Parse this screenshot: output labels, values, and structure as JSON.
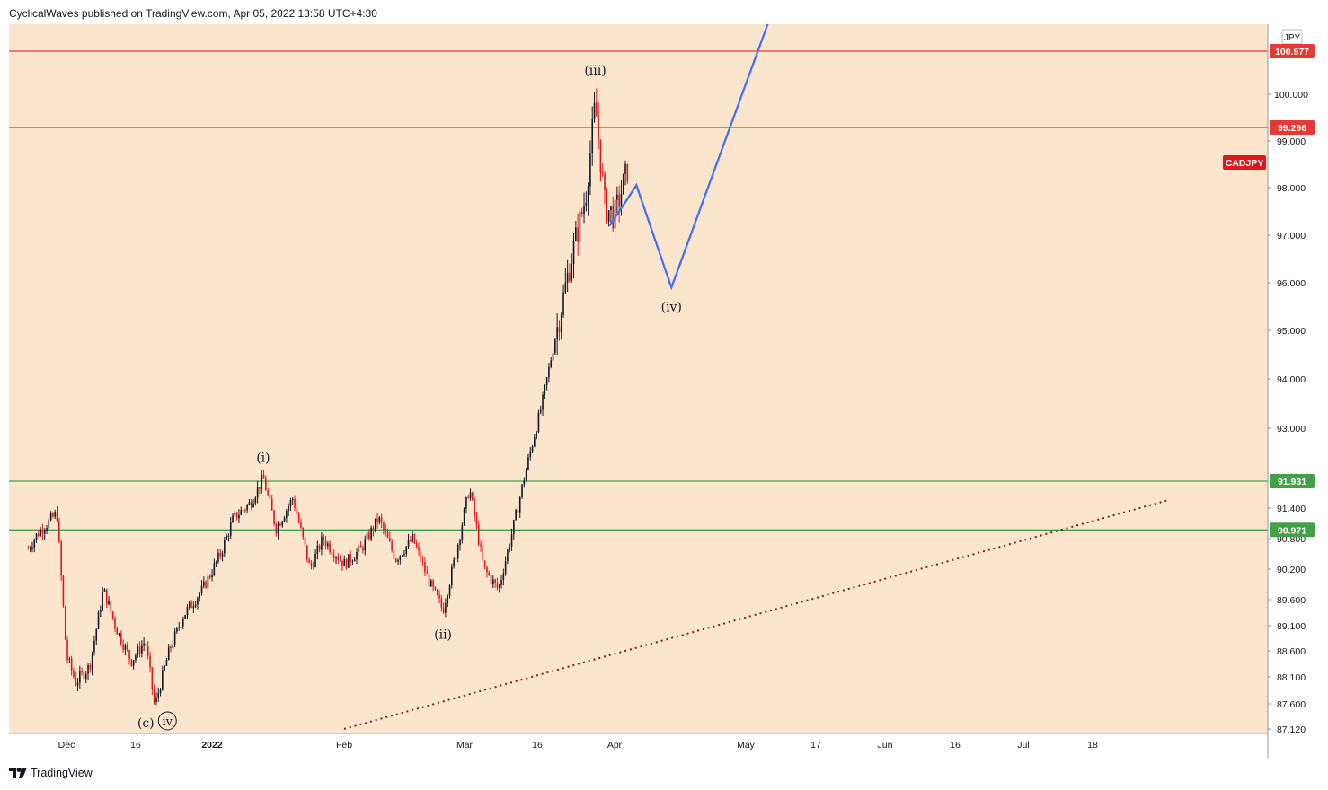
{
  "header": {
    "publisher_line": "CyclicalWaves published on TradingView.com, Apr 05, 2022 13:58 UTC+4:30"
  },
  "footer": {
    "brand": "TradingView",
    "logo_icon": "tradingview-logo-icon"
  },
  "chart_data": {
    "type": "candlestick",
    "symbol": "CADJPY",
    "currency": "JPY",
    "colors": {
      "background": "#fce5cd",
      "up_candle": "#131722",
      "down_candle": "#e0161f",
      "resistance": "#e53935",
      "support": "#43a047",
      "projection": "#3b6ff5",
      "trendline": "#8b1a1a"
    },
    "x_tick_labels": [
      "Dec",
      "16",
      "2022",
      "Feb",
      "Mar",
      "16",
      "Apr",
      "May",
      "17",
      "Jun",
      "16",
      "Jul",
      "18"
    ],
    "y_tick_labels": [
      "87.120",
      "87.600",
      "88.100",
      "88.600",
      "89.100",
      "89.600",
      "90.200",
      "90.800",
      "91.400",
      "93.000",
      "94.000",
      "95.000",
      "96.000",
      "97.000",
      "98.000",
      "99.000",
      "100.000"
    ],
    "y_range": [
      87.12,
      101.6
    ],
    "horizontal_levels": [
      {
        "value": 100.977,
        "label": "100.977",
        "kind": "resistance"
      },
      {
        "value": 99.296,
        "label": "99.296",
        "kind": "resistance"
      },
      {
        "value": 91.931,
        "label": "91.931",
        "kind": "support"
      },
      {
        "value": 90.971,
        "label": "90.971",
        "kind": "support"
      }
    ],
    "symbol_badge": "CADJPY",
    "wave_labels": [
      {
        "text": "(c)",
        "date": "2021-12-20",
        "price": 87.55
      },
      {
        "text": "iv",
        "date": "2021-12-20",
        "price": 87.55,
        "circled": true
      },
      {
        "text": "(i)",
        "date": "2022-01-13",
        "price": 92.1
      },
      {
        "text": "(ii)",
        "date": "2022-02-24",
        "price": 89.3
      },
      {
        "text": "(iii)",
        "date": "2022-03-28",
        "price": 100.2
      },
      {
        "text": "(iv)",
        "date": "2022-04-14",
        "price": 95.9
      }
    ],
    "projection_path": [
      {
        "date": "2022-03-31",
        "price": 97.2
      },
      {
        "date": "2022-04-06",
        "price": 98.05
      },
      {
        "date": "2022-04-14",
        "price": 95.9
      },
      {
        "date": "2022-05-06",
        "price": 101.6
      }
    ],
    "trendline": [
      {
        "date": "2022-02-01",
        "price": 87.12
      },
      {
        "date": "2022-08-01",
        "price": 91.55
      }
    ],
    "swing_points": [
      {
        "date": "2021-11-23",
        "price": 90.6
      },
      {
        "date": "2021-11-25",
        "price": 90.9
      },
      {
        "date": "2021-11-27",
        "price": 91.1
      },
      {
        "date": "2021-11-29",
        "price": 91.3
      },
      {
        "date": "2021-12-01",
        "price": 88.5
      },
      {
        "date": "2021-12-03",
        "price": 88.0
      },
      {
        "date": "2021-12-06",
        "price": 88.3
      },
      {
        "date": "2021-12-09",
        "price": 89.8
      },
      {
        "date": "2021-12-12",
        "price": 89.0
      },
      {
        "date": "2021-12-15",
        "price": 88.4
      },
      {
        "date": "2021-12-18",
        "price": 88.8
      },
      {
        "date": "2021-12-20",
        "price": 87.55
      },
      {
        "date": "2021-12-23",
        "price": 88.6
      },
      {
        "date": "2021-12-26",
        "price": 89.3
      },
      {
        "date": "2021-12-30",
        "price": 89.8
      },
      {
        "date": "2022-01-03",
        "price": 90.5
      },
      {
        "date": "2022-01-06",
        "price": 91.2
      },
      {
        "date": "2022-01-10",
        "price": 91.5
      },
      {
        "date": "2022-01-13",
        "price": 92.0
      },
      {
        "date": "2022-01-16",
        "price": 91.0
      },
      {
        "date": "2022-01-20",
        "price": 91.6
      },
      {
        "date": "2022-01-24",
        "price": 90.2
      },
      {
        "date": "2022-01-27",
        "price": 90.8
      },
      {
        "date": "2022-02-01",
        "price": 90.3
      },
      {
        "date": "2022-02-05",
        "price": 90.6
      },
      {
        "date": "2022-02-09",
        "price": 91.2
      },
      {
        "date": "2022-02-13",
        "price": 90.4
      },
      {
        "date": "2022-02-17",
        "price": 90.8
      },
      {
        "date": "2022-02-21",
        "price": 89.9
      },
      {
        "date": "2022-02-24",
        "price": 89.4
      },
      {
        "date": "2022-02-27",
        "price": 90.5
      },
      {
        "date": "2022-03-02",
        "price": 91.8
      },
      {
        "date": "2022-03-05",
        "price": 90.2
      },
      {
        "date": "2022-03-08",
        "price": 89.8
      },
      {
        "date": "2022-03-11",
        "price": 91.0
      },
      {
        "date": "2022-03-14",
        "price": 92.3
      },
      {
        "date": "2022-03-17",
        "price": 93.5
      },
      {
        "date": "2022-03-20",
        "price": 95.0
      },
      {
        "date": "2022-03-23",
        "price": 96.5
      },
      {
        "date": "2022-03-26",
        "price": 97.8
      },
      {
        "date": "2022-03-28",
        "price": 99.8
      },
      {
        "date": "2022-03-30",
        "price": 97.6
      },
      {
        "date": "2022-04-01",
        "price": 97.4
      },
      {
        "date": "2022-04-04",
        "price": 98.4
      }
    ]
  }
}
